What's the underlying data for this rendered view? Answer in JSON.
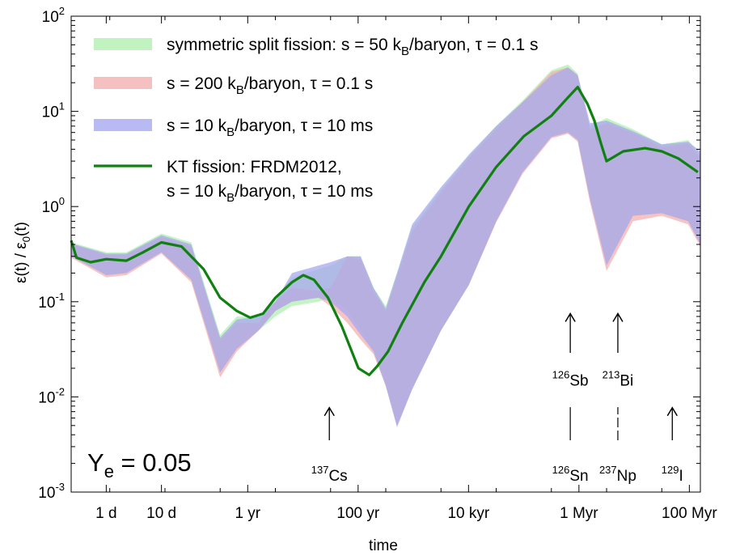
{
  "chart_data": {
    "type": "area",
    "xlabel": "time",
    "ylabel_base": "ε(t) / ε",
    "ylabel_sub": "0",
    "ylabel_tail": "(t)",
    "x_scale": "log",
    "x_unit": "seconds",
    "xlim": [
      20000,
      5000000000000000.0
    ],
    "ylim": [
      0.001,
      100
    ],
    "y_scale": "log",
    "x_ticks": [
      {
        "value": 86400,
        "label": "1 d"
      },
      {
        "value": 864000,
        "label": "10 d"
      },
      {
        "value": 31560000.0,
        "label": "1 yr"
      },
      {
        "value": 3156000000.0,
        "label": "100 yr"
      },
      {
        "value": 315600000000.0,
        "label": "10 kyr"
      },
      {
        "value": 31560000000000.0,
        "label": "1 Myr"
      },
      {
        "value": 3156000000000000.0,
        "label": "100 Myr"
      }
    ],
    "y_ticks": [
      {
        "value": 0.001,
        "base": "10",
        "exp": "-3"
      },
      {
        "value": 0.01,
        "base": "10",
        "exp": "-2"
      },
      {
        "value": 0.1,
        "base": "10",
        "exp": "-1"
      },
      {
        "value": 1,
        "base": "10",
        "exp": "0"
      },
      {
        "value": 10,
        "base": "10",
        "exp": "1"
      },
      {
        "value": 100,
        "base": "10",
        "exp": "2"
      }
    ],
    "series": [
      {
        "name": "symmetric split fission: s = 50 k_B/baryon, τ = 0.1 s",
        "legend_parts": [
          "symmetric split fission: s = 50 k",
          "B",
          "/baryon, τ = 0.1 s"
        ],
        "kind": "band",
        "color": "#b0f0b0",
        "x": [
          20000,
          86400,
          200000,
          864000,
          3000000.0,
          10000000.0,
          20000000.0,
          50000000.0,
          100000000.0,
          200000000.0,
          600000000.0,
          1000000000.0,
          2000000000.0,
          3500000000.0,
          6000000000.0,
          10000000000.0,
          16000000000.0,
          30000000000.0,
          100000000000.0,
          320000000000.0,
          1000000000000.0,
          3000000000000.0,
          10000000000000.0,
          20000000000000.0,
          30000000000000.0,
          50000000000000.0,
          100000000000000.0,
          300000000000000.0,
          1000000000000000.0,
          3000000000000000.0,
          5000000000000000.0
        ],
        "upper": [
          0.42,
          0.33,
          0.33,
          0.52,
          0.42,
          0.045,
          0.07,
          0.07,
          0.11,
          0.18,
          0.22,
          0.24,
          0.3,
          0.3,
          0.14,
          0.09,
          0.2,
          0.6,
          1.5,
          3.4,
          7.0,
          13.0,
          27.0,
          31.0,
          25.0,
          7.0,
          8.5,
          6.5,
          4.5,
          5.0,
          3.5
        ],
        "lower": [
          0.3,
          0.19,
          0.2,
          0.33,
          0.17,
          0.018,
          0.032,
          0.05,
          0.07,
          0.09,
          0.1,
          0.11,
          0.08,
          0.05,
          0.03,
          0.014,
          0.005,
          0.012,
          0.05,
          0.15,
          0.7,
          2.3,
          5.4,
          6.0,
          5.0,
          1.2,
          0.25,
          0.8,
          0.85,
          0.7,
          0.4
        ]
      },
      {
        "name": "s = 200 k_B/baryon, τ = 0.1 s",
        "legend_parts": [
          "s = 200 k",
          "B",
          "/baryon, τ = 0.1 s"
        ],
        "kind": "band",
        "color": "#f4b0b0",
        "x": [
          20000,
          86400,
          200000,
          864000,
          3000000.0,
          10000000.0,
          20000000.0,
          50000000.0,
          100000000.0,
          200000000.0,
          600000000.0,
          1000000000.0,
          2000000000.0,
          3500000000.0,
          6000000000.0,
          10000000000.0,
          16000000000.0,
          30000000000.0,
          100000000000.0,
          320000000000.0,
          1000000000000.0,
          3000000000000.0,
          10000000000000.0,
          20000000000000.0,
          30000000000000.0,
          50000000000000.0,
          100000000000000.0,
          300000000000000.0,
          1000000000000000.0,
          3000000000000000.0,
          5000000000000000.0
        ],
        "upper": [
          0.4,
          0.31,
          0.31,
          0.48,
          0.38,
          0.04,
          0.06,
          0.06,
          0.1,
          0.14,
          0.13,
          0.14,
          0.3,
          0.28,
          0.13,
          0.08,
          0.18,
          0.55,
          1.4,
          3.2,
          6.5,
          12.5,
          26.0,
          29.0,
          24.0,
          6.5,
          7.5,
          6.0,
          4.2,
          4.6,
          3.3
        ],
        "lower": [
          0.29,
          0.18,
          0.19,
          0.32,
          0.16,
          0.016,
          0.03,
          0.05,
          0.08,
          0.1,
          0.11,
          0.09,
          0.06,
          0.04,
          0.028,
          0.013,
          0.005,
          0.012,
          0.05,
          0.15,
          0.68,
          2.2,
          5.2,
          5.8,
          4.8,
          1.1,
          0.21,
          0.7,
          0.8,
          0.65,
          0.38
        ]
      },
      {
        "name": "s = 10 k_B/baryon, τ = 10 ms",
        "legend_parts": [
          "s = 10 k",
          "B",
          "/baryon, τ = 10 ms"
        ],
        "kind": "band",
        "color": "#a8a8f0",
        "x": [
          20000,
          86400,
          200000,
          864000,
          3000000.0,
          10000000.0,
          20000000.0,
          50000000.0,
          100000000.0,
          200000000.0,
          600000000.0,
          1000000000.0,
          2000000000.0,
          3500000000.0,
          6000000000.0,
          10000000000.0,
          16000000000.0,
          30000000000.0,
          100000000000.0,
          320000000000.0,
          1000000000000.0,
          3000000000000.0,
          10000000000000.0,
          20000000000000.0,
          30000000000000.0,
          50000000000000.0,
          100000000000000.0,
          300000000000000.0,
          1000000000000000.0,
          3000000000000000.0,
          5000000000000000.0
        ],
        "upper": [
          0.41,
          0.32,
          0.32,
          0.5,
          0.4,
          0.042,
          0.065,
          0.07,
          0.1,
          0.2,
          0.24,
          0.26,
          0.3,
          0.3,
          0.14,
          0.085,
          0.2,
          0.65,
          1.6,
          3.5,
          7.0,
          12.5,
          24.0,
          29.0,
          24.0,
          7.5,
          8.0,
          6.2,
          4.5,
          4.8,
          3.8
        ],
        "lower": [
          0.3,
          0.19,
          0.2,
          0.33,
          0.17,
          0.018,
          0.032,
          0.05,
          0.08,
          0.1,
          0.11,
          0.1,
          0.07,
          0.045,
          0.03,
          0.013,
          0.0048,
          0.012,
          0.05,
          0.15,
          0.7,
          2.3,
          5.4,
          6.0,
          5.0,
          1.2,
          0.24,
          0.8,
          0.85,
          0.7,
          0.4
        ]
      },
      {
        "name": "KT fission: FRDM2012, s = 10 k_B/baryon, τ = 10 ms",
        "legend_parts": [
          "KT fission: FRDM2012,",
          "s = 10 k",
          "B",
          "/baryon, τ = 10 ms"
        ],
        "kind": "line",
        "color": "#108010",
        "x": [
          20000,
          25000,
          45000,
          86400,
          200000,
          400000,
          864000,
          2000000.0,
          5000000.0,
          10000000.0,
          20000000.0,
          35000000.0,
          60000000.0,
          100000000.0,
          200000000.0,
          320000000.0,
          500000000.0,
          900000000.0,
          1600000000.0,
          3200000000.0,
          5000000000.0,
          7000000000.0,
          11000000000.0,
          20000000000.0,
          50000000000.0,
          100000000000.0,
          320000000000.0,
          1000000000000.0,
          3200000000000.0,
          10000000000000.0,
          20000000000000.0,
          30000000000000.0,
          45000000000000.0,
          60000000000000.0,
          80000000000000.0,
          100000000000000.0,
          200000000000000.0,
          500000000000000.0,
          1000000000000000.0,
          2000000000000000.0,
          4500000000000000.0
        ],
        "y": [
          0.44,
          0.29,
          0.26,
          0.28,
          0.27,
          0.33,
          0.42,
          0.38,
          0.22,
          0.11,
          0.08,
          0.068,
          0.075,
          0.11,
          0.16,
          0.19,
          0.17,
          0.11,
          0.055,
          0.02,
          0.017,
          0.021,
          0.03,
          0.06,
          0.16,
          0.3,
          1.0,
          2.6,
          5.5,
          9.0,
          14.0,
          18.0,
          12.0,
          8.0,
          4.5,
          3.0,
          3.8,
          4.1,
          3.8,
          3.2,
          2.3
        ]
      }
    ],
    "annotations": [
      {
        "name": "cs137",
        "x": 950000000.0,
        "arrow_from_y": 0.0035,
        "arrow_to_y": 0.0077,
        "mass": "137",
        "element": "Cs",
        "label_y": 0.0016
      },
      {
        "name": "sb126",
        "x": 22000000000000.0,
        "arrow_from_y": 0.029,
        "arrow_to_y": 0.075,
        "mass": "126",
        "element": "Sb",
        "label_y": 0.016
      },
      {
        "name": "bi213",
        "x": 160000000000000.0,
        "arrow_from_y": 0.029,
        "arrow_to_y": 0.075,
        "mass": "213",
        "element": "Bi",
        "label_y": 0.016
      },
      {
        "name": "sn126",
        "x": 22000000000000.0,
        "line_from_y": 0.0035,
        "line_to_y": 0.0078,
        "mass": "126",
        "element": "Sn",
        "label_y": 0.0016
      },
      {
        "name": "np237",
        "x": 160000000000000.0,
        "line_from_y": 0.0035,
        "line_to_y": 0.0078,
        "dashed": true,
        "mass": "237",
        "element": "Np",
        "label_y": 0.0016
      },
      {
        "name": "i129",
        "x": 1550000000000000.0,
        "arrow_from_y": 0.0035,
        "arrow_to_y": 0.0077,
        "mass": "129",
        "element": "I",
        "label_y": 0.0016
      }
    ],
    "ye_label": {
      "base": "Y",
      "sub": "e",
      "tail": " = 0.05"
    },
    "legend_position": "top-left",
    "grid": false
  }
}
